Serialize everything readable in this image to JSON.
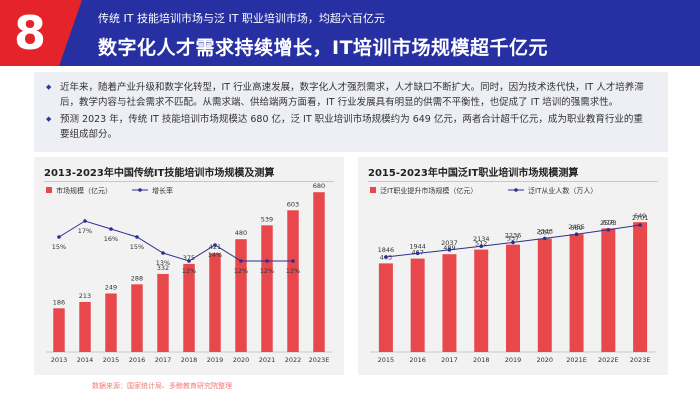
{
  "header": {
    "section_number": "8",
    "subtitle": "传统 IT 技能培训市场与泛 IT 职业培训市场，均超六百亿元",
    "title": "数字化人才需求持续增长，IT培训市场规模超千亿元"
  },
  "summary": {
    "bullets": [
      "近年来，随着产业升级和数字化转型，IT 行业高速发展，数字化人才强烈需求，人才缺口不断扩大。同时，因为技术迭代快，IT 人才培养滞后，教学内容与社会需求不匹配。从需求端、供给端两方面看，IT 行业发展具有明显的供需不平衡性，也促成了 IT 培训的强需求性。",
      "预测 2023 年，传统 IT 技能培训市场规模达 680 亿，泛 IT 职业培训市场规模约为 649 亿元，两者合计超千亿元，成为职业教育行业的重要组成部分。"
    ]
  },
  "colors": {
    "header_bg": "#2730a3",
    "accent_red": "#e5232a",
    "bar": "#e8474c",
    "line": "#2d2f8f"
  },
  "source": "数据来源：国家统计局、多鲸教育研究院整理",
  "chart_data": [
    {
      "type": "bar",
      "title": "2013-2023年中国传统IT技能培训市场规模及测算",
      "categories": [
        "2013",
        "2014",
        "2015",
        "2016",
        "2017",
        "2018",
        "2019",
        "2020",
        "2021",
        "2022",
        "2023E"
      ],
      "series": [
        {
          "name": "市场规模（亿元）",
          "type": "bar",
          "values": [
            186,
            213,
            249,
            288,
            332,
            375,
            421,
            480,
            539,
            603,
            680
          ]
        },
        {
          "name": "增长率",
          "type": "line",
          "values": [
            15,
            17,
            16,
            15,
            13,
            12,
            14,
            12,
            12,
            12,
            null
          ],
          "labels": [
            "15%",
            "17%",
            "16%",
            "15%",
            "13%",
            "12%",
            "14%",
            "12%",
            "12%",
            "12%",
            ""
          ]
        }
      ],
      "legend": "top-left",
      "grid": false
    },
    {
      "type": "bar",
      "title": "2015-2023年中国泛IT职业培训市场规模测算",
      "categories": [
        "2015",
        "2016",
        "2017",
        "2018",
        "2019",
        "2020",
        "2021E",
        "2022E",
        "2023E"
      ],
      "series": [
        {
          "name": "泛IT职业提升市场规模（亿元）",
          "type": "bar",
          "values": [
            443,
            467,
            489,
            512,
            537,
            567,
            589,
            618,
            649
          ]
        },
        {
          "name": "泛IT从业人数（万人）",
          "type": "line",
          "values": [
            1846,
            1944,
            2037,
            2134,
            2236,
            2343,
            2455,
            2573,
            2701
          ]
        }
      ],
      "legend": "top-left",
      "grid": false
    }
  ]
}
